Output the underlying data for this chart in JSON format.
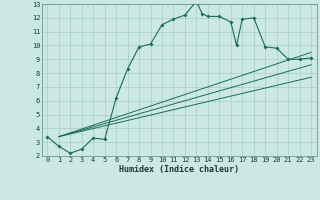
{
  "title": "",
  "xlabel": "Humidex (Indice chaleur)",
  "ylabel": "",
  "bg_color": "#cce8e4",
  "grid_color": "#aaccc8",
  "line_color": "#1a6b5a",
  "xlim": [
    -0.5,
    23.5
  ],
  "ylim": [
    2,
    13
  ],
  "xticks": [
    0,
    1,
    2,
    3,
    4,
    5,
    6,
    7,
    8,
    9,
    10,
    11,
    12,
    13,
    14,
    15,
    16,
    17,
    18,
    19,
    20,
    21,
    22,
    23
  ],
  "yticks": [
    2,
    3,
    4,
    5,
    6,
    7,
    8,
    9,
    10,
    11,
    12,
    13
  ],
  "main_curve_x": [
    0,
    1,
    2,
    3,
    4,
    5,
    6,
    7,
    8,
    9,
    10,
    11,
    12,
    13,
    13.5,
    14,
    15,
    16,
    16.5,
    17,
    18,
    19,
    20,
    21,
    22,
    23
  ],
  "main_curve_y": [
    3.4,
    2.7,
    2.2,
    2.5,
    3.3,
    3.2,
    6.2,
    8.3,
    9.9,
    10.1,
    11.5,
    11.9,
    12.2,
    13.2,
    12.3,
    12.1,
    12.1,
    11.7,
    10.0,
    11.9,
    12.0,
    9.9,
    9.8,
    9.0,
    9.0,
    9.1
  ],
  "reg_line1_x": [
    1,
    23
  ],
  "reg_line1_y": [
    3.4,
    9.5
  ],
  "reg_line2_x": [
    1,
    23
  ],
  "reg_line2_y": [
    3.4,
    8.6
  ],
  "reg_line3_x": [
    1,
    23
  ],
  "reg_line3_y": [
    3.4,
    7.7
  ]
}
